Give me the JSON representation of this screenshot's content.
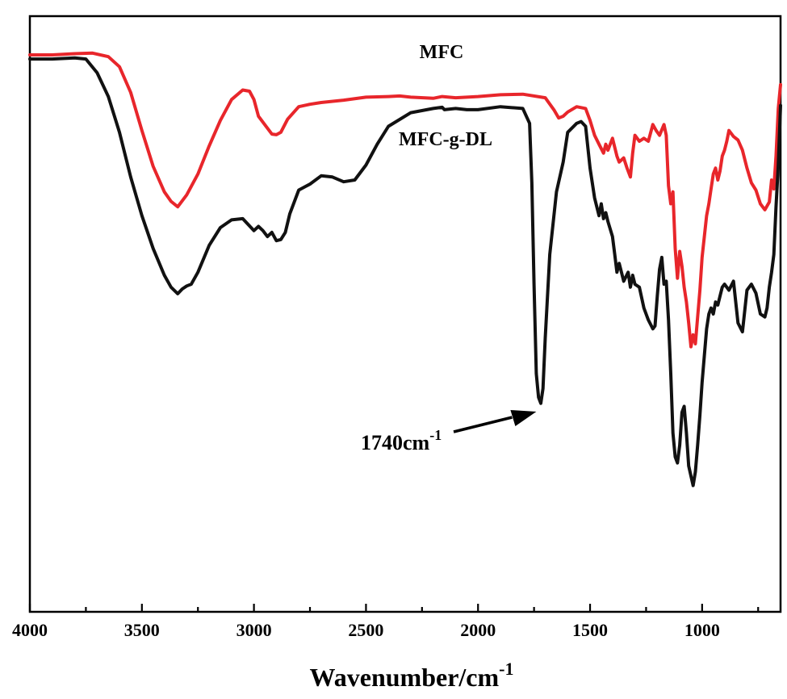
{
  "chart_data": {
    "type": "line",
    "title": "",
    "xlabel": "Wavenumber/cm",
    "xlabel_superscript": "-1",
    "ylabel": "",
    "xlim": [
      4000,
      650
    ],
    "x_reversed": true,
    "y_ticks_shown": false,
    "grid": false,
    "x_ticks": [
      4000,
      3500,
      3000,
      2500,
      2000,
      1500,
      1000
    ],
    "x_tick_labels": [
      "4000",
      "3500",
      "3000",
      "2500",
      "2000",
      "1500",
      "1000"
    ],
    "series": [
      {
        "name": "MFC",
        "color": "#e8262b",
        "x": [
          4000,
          3900,
          3800,
          3720,
          3650,
          3600,
          3550,
          3500,
          3450,
          3400,
          3370,
          3340,
          3300,
          3250,
          3200,
          3150,
          3100,
          3050,
          3020,
          3000,
          2980,
          2950,
          2920,
          2900,
          2880,
          2850,
          2800,
          2750,
          2700,
          2600,
          2500,
          2400,
          2350,
          2300,
          2200,
          2160,
          2100,
          2000,
          1900,
          1800,
          1700,
          1660,
          1640,
          1620,
          1600,
          1560,
          1520,
          1500,
          1480,
          1460,
          1440,
          1430,
          1420,
          1400,
          1380,
          1370,
          1350,
          1335,
          1320,
          1310,
          1300,
          1280,
          1260,
          1240,
          1220,
          1205,
          1190,
          1170,
          1160,
          1150,
          1140,
          1130,
          1120,
          1110,
          1100,
          1090,
          1080,
          1070,
          1060,
          1050,
          1040,
          1030,
          1020,
          1010,
          1000,
          990,
          980,
          970,
          960,
          950,
          940,
          930,
          920,
          910,
          900,
          890,
          880,
          860,
          840,
          820,
          800,
          780,
          760,
          740,
          720,
          700,
          690,
          680,
          670,
          660,
          650
        ],
        "y": [
          93.5,
          93.5,
          93.7,
          93.8,
          93.2,
          91.5,
          87.2,
          80.8,
          74.8,
          70.5,
          68.9,
          68.0,
          70.0,
          73.5,
          78.2,
          82.5,
          86.0,
          87.6,
          87.4,
          86.0,
          83.2,
          81.7,
          80.2,
          80.1,
          80.5,
          82.7,
          84.8,
          85.2,
          85.5,
          85.9,
          86.4,
          86.5,
          86.6,
          86.4,
          86.2,
          86.5,
          86.3,
          86.5,
          86.8,
          86.9,
          86.3,
          84.2,
          82.9,
          83.2,
          83.9,
          84.8,
          84.5,
          82.5,
          80.0,
          78.5,
          77.0,
          78.5,
          77.5,
          79.5,
          76.5,
          75.5,
          76.2,
          74.5,
          73.0,
          77.0,
          80.0,
          79.0,
          79.5,
          79.0,
          81.8,
          80.8,
          80.0,
          81.8,
          80.0,
          71.5,
          68.5,
          70.5,
          61.0,
          56.0,
          60.5,
          58.0,
          54.5,
          52.0,
          48.5,
          44.5,
          46.5,
          45.0,
          49.5,
          54.0,
          59.5,
          63.0,
          66.5,
          68.5,
          71.0,
          73.5,
          74.5,
          72.5,
          74.0,
          76.5,
          77.5,
          79.0,
          80.8,
          79.8,
          79.2,
          77.5,
          74.5,
          72.0,
          70.8,
          68.5,
          67.5,
          68.8,
          72.5,
          71.0,
          76.5,
          84.5,
          88.5
        ]
      },
      {
        "name": "MFC-g-DL",
        "color": "#111111",
        "x": [
          4000,
          3900,
          3800,
          3750,
          3700,
          3650,
          3600,
          3550,
          3500,
          3450,
          3400,
          3370,
          3340,
          3320,
          3300,
          3280,
          3250,
          3200,
          3150,
          3100,
          3050,
          3000,
          2980,
          2960,
          2940,
          2920,
          2900,
          2880,
          2860,
          2840,
          2800,
          2750,
          2700,
          2650,
          2600,
          2550,
          2500,
          2450,
          2400,
          2300,
          2200,
          2160,
          2150,
          2100,
          2050,
          2000,
          1900,
          1800,
          1770,
          1760,
          1750,
          1740,
          1730,
          1720,
          1710,
          1700,
          1680,
          1650,
          1620,
          1600,
          1560,
          1540,
          1520,
          1500,
          1480,
          1460,
          1450,
          1440,
          1430,
          1420,
          1400,
          1390,
          1380,
          1370,
          1360,
          1350,
          1330,
          1320,
          1310,
          1300,
          1280,
          1260,
          1240,
          1220,
          1210,
          1200,
          1190,
          1180,
          1170,
          1160,
          1150,
          1140,
          1130,
          1120,
          1110,
          1100,
          1090,
          1080,
          1070,
          1060,
          1050,
          1040,
          1030,
          1020,
          1010,
          1000,
          990,
          980,
          970,
          960,
          950,
          940,
          930,
          920,
          910,
          900,
          880,
          860,
          840,
          820,
          810,
          800,
          780,
          760,
          740,
          720,
          710,
          700,
          690,
          680,
          670,
          660,
          650
        ],
        "y": [
          92.8,
          92.8,
          93.0,
          92.8,
          90.5,
          86.5,
          80.5,
          73.0,
          66.5,
          61.0,
          56.5,
          54.5,
          53.4,
          54.2,
          54.7,
          55.0,
          57.0,
          61.5,
          64.5,
          65.8,
          66.0,
          64.0,
          64.7,
          64.0,
          63.0,
          63.7,
          62.3,
          62.5,
          63.7,
          66.8,
          70.8,
          71.8,
          73.2,
          73.0,
          72.2,
          72.5,
          75.0,
          78.5,
          81.5,
          83.8,
          84.5,
          84.7,
          84.3,
          84.5,
          84.3,
          84.3,
          84.8,
          84.5,
          82.0,
          72.0,
          55.0,
          40.0,
          36.0,
          35.0,
          37.5,
          46.0,
          60.0,
          70.5,
          75.5,
          80.5,
          82.0,
          82.3,
          81.5,
          74.5,
          69.5,
          66.5,
          68.5,
          66.0,
          67.0,
          65.5,
          63.0,
          60.0,
          57.0,
          58.5,
          57.0,
          55.5,
          57.0,
          54.5,
          56.5,
          55.0,
          54.5,
          51.0,
          49.0,
          47.5,
          48.0,
          53.0,
          57.5,
          59.5,
          55.0,
          55.5,
          49.0,
          40.0,
          30.0,
          26.0,
          25.0,
          28.0,
          33.5,
          34.5,
          30.0,
          24.5,
          22.8,
          21.2,
          23.5,
          28.0,
          33.0,
          38.5,
          43.0,
          47.5,
          50.0,
          51.0,
          50.0,
          52.0,
          51.5,
          53.0,
          54.5,
          55.0,
          54.0,
          55.5,
          48.5,
          47.0,
          50.5,
          54.0,
          55.0,
          53.5,
          50.0,
          49.5,
          51.0,
          54.5,
          57.0,
          60.0,
          68.0,
          75.0,
          85.0
        ]
      }
    ],
    "annotations": [
      {
        "text": "1740cm",
        "superscript": "-1",
        "arrow_to_x": 1740
      }
    ]
  }
}
